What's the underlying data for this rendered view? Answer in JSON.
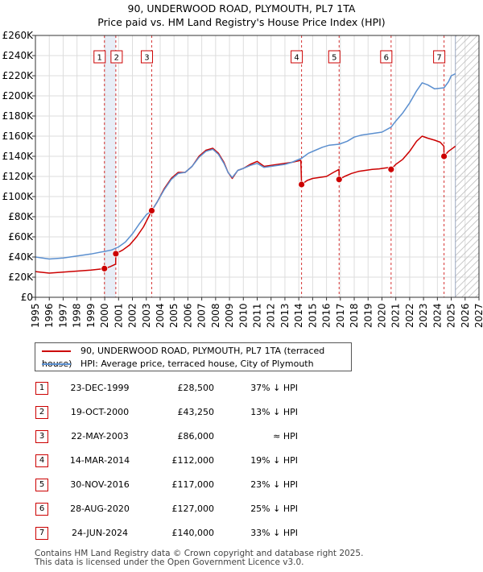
{
  "title_line1": "90, UNDERWOOD ROAD, PLYMOUTH, PL7 1TA",
  "title_line2": "Price paid vs. HM Land Registry's House Price Index (HPI)",
  "legend": {
    "red_label": "90, UNDERWOOD ROAD, PLYMOUTH, PL7 1TA (terraced house)",
    "blue_label": "HPI: Average price, terraced house, City of Plymouth"
  },
  "colors": {
    "red": "#cc0000",
    "blue": "#5b8fcf",
    "hatch": "#b8b8b8",
    "grid": "#dddddd",
    "shade": "#e8eef7"
  },
  "sales": [
    {
      "num": "1",
      "date": "23-DEC-1999",
      "price": "£28,500",
      "hpi": "37% ↓ HPI",
      "t": 1999.98,
      "v": 28500
    },
    {
      "num": "2",
      "date": "19-OCT-2000",
      "price": "£43,250",
      "hpi": "13% ↓ HPI",
      "t": 2000.8,
      "v": 43250
    },
    {
      "num": "3",
      "date": "22-MAY-2003",
      "price": "£86,000",
      "hpi": "≈ HPI",
      "t": 2003.39,
      "v": 86000
    },
    {
      "num": "4",
      "date": "14-MAR-2014",
      "price": "£112,000",
      "hpi": "19% ↓ HPI",
      "t": 2014.2,
      "v": 112000
    },
    {
      "num": "5",
      "date": "30-NOV-2016",
      "price": "£117,000",
      "hpi": "23% ↓ HPI",
      "t": 2016.91,
      "v": 117000
    },
    {
      "num": "6",
      "date": "28-AUG-2020",
      "price": "£127,000",
      "hpi": "25% ↓ HPI",
      "t": 2020.66,
      "v": 127000
    },
    {
      "num": "7",
      "date": "24-JUN-2024",
      "price": "£140,000",
      "hpi": "33% ↓ HPI",
      "t": 2024.48,
      "v": 140000
    }
  ],
  "footer_line1": "Contains HM Land Registry data © Crown copyright and database right 2025.",
  "footer_line2": "This data is licensed under the Open Government Licence v3.0.",
  "chart_data": {
    "type": "line",
    "title": "90, UNDERWOOD ROAD, PLYMOUTH, PL7 1TA — Price paid vs. HM Land Registry's House Price Index (HPI)",
    "xlabel": "",
    "ylabel": "",
    "xlim": [
      1995,
      2027
    ],
    "ylim": [
      0,
      260000
    ],
    "y_ticks": [
      0,
      20000,
      40000,
      60000,
      80000,
      100000,
      120000,
      140000,
      160000,
      180000,
      200000,
      220000,
      240000,
      260000
    ],
    "y_tick_labels": [
      "£0",
      "£20K",
      "£40K",
      "£60K",
      "£80K",
      "£100K",
      "£120K",
      "£140K",
      "£160K",
      "£180K",
      "£200K",
      "£220K",
      "£240K",
      "£260K"
    ],
    "x_ticks": [
      "1995",
      "1996",
      "1997",
      "1998",
      "1999",
      "2000",
      "2001",
      "2002",
      "2003",
      "2004",
      "2005",
      "2006",
      "2007",
      "2008",
      "2009",
      "2010",
      "2011",
      "2012",
      "2013",
      "2014",
      "2015",
      "2016",
      "2017",
      "2018",
      "2019",
      "2020",
      "2021",
      "2022",
      "2023",
      "2024",
      "2025",
      "2026",
      "2027"
    ],
    "forecast_from": 2025.3,
    "series": [
      {
        "name": "90, UNDERWOOD ROAD, PLYMOUTH, PL7 1TA (terraced house)",
        "color": "#cc0000",
        "points": [
          [
            1995,
            25500
          ],
          [
            1996,
            24000
          ],
          [
            1997,
            25000
          ],
          [
            1998,
            26000
          ],
          [
            1999,
            27000
          ],
          [
            1999.98,
            28500
          ],
          [
            2000.4,
            30500
          ],
          [
            2000.79,
            33000
          ],
          [
            2000.8,
            43250
          ],
          [
            2001.3,
            47000
          ],
          [
            2001.8,
            52000
          ],
          [
            2002.3,
            60000
          ],
          [
            2002.8,
            70000
          ],
          [
            2003.39,
            86000
          ],
          [
            2003.8,
            95000
          ],
          [
            2004.3,
            108000
          ],
          [
            2004.8,
            118000
          ],
          [
            2005.3,
            124000
          ],
          [
            2005.8,
            124000
          ],
          [
            2006.3,
            130000
          ],
          [
            2006.8,
            140000
          ],
          [
            2007.3,
            146000
          ],
          [
            2007.8,
            148000
          ],
          [
            2008.2,
            143000
          ],
          [
            2008.6,
            134000
          ],
          [
            2008.9,
            124000
          ],
          [
            2009.2,
            118000
          ],
          [
            2009.6,
            126000
          ],
          [
            2010,
            128000
          ],
          [
            2010.5,
            132000
          ],
          [
            2011,
            135000
          ],
          [
            2011.5,
            130000
          ],
          [
            2012,
            131000
          ],
          [
            2012.5,
            132000
          ],
          [
            2013,
            133000
          ],
          [
            2013.5,
            134000
          ],
          [
            2014.15,
            136000
          ],
          [
            2014.2,
            112000
          ],
          [
            2014.6,
            116000
          ],
          [
            2015,
            118000
          ],
          [
            2015.5,
            119000
          ],
          [
            2016,
            120000
          ],
          [
            2016.5,
            124000
          ],
          [
            2016.9,
            127000
          ],
          [
            2016.91,
            117000
          ],
          [
            2017.3,
            120000
          ],
          [
            2017.8,
            123000
          ],
          [
            2018.3,
            125000
          ],
          [
            2018.8,
            126000
          ],
          [
            2019.3,
            127000
          ],
          [
            2019.8,
            127500
          ],
          [
            2020.3,
            128500
          ],
          [
            2020.65,
            129000
          ],
          [
            2020.66,
            127000
          ],
          [
            2021,
            132000
          ],
          [
            2021.5,
            137000
          ],
          [
            2022,
            145000
          ],
          [
            2022.5,
            155000
          ],
          [
            2022.9,
            160000
          ],
          [
            2023.3,
            158000
          ],
          [
            2023.8,
            156000
          ],
          [
            2024.2,
            154000
          ],
          [
            2024.47,
            150000
          ],
          [
            2024.48,
            140000
          ],
          [
            2024.8,
            145000
          ],
          [
            2025,
            147000
          ],
          [
            2025.3,
            150000
          ]
        ]
      },
      {
        "name": "HPI: Average price, terraced house, City of Plymouth",
        "color": "#5b8fcf",
        "points": [
          [
            1995,
            40000
          ],
          [
            1996,
            38000
          ],
          [
            1997,
            39000
          ],
          [
            1998,
            41000
          ],
          [
            1999,
            43000
          ],
          [
            1999.98,
            45500
          ],
          [
            2000.5,
            47000
          ],
          [
            2001,
            50000
          ],
          [
            2001.5,
            55000
          ],
          [
            2002,
            63000
          ],
          [
            2002.5,
            73000
          ],
          [
            2003,
            82000
          ],
          [
            2003.39,
            86000
          ],
          [
            2003.8,
            95000
          ],
          [
            2004.3,
            107000
          ],
          [
            2004.8,
            117000
          ],
          [
            2005.3,
            123000
          ],
          [
            2005.8,
            124000
          ],
          [
            2006.3,
            130000
          ],
          [
            2006.8,
            139000
          ],
          [
            2007.3,
            145000
          ],
          [
            2007.8,
            147000
          ],
          [
            2008.2,
            142000
          ],
          [
            2008.6,
            133000
          ],
          [
            2008.9,
            124000
          ],
          [
            2009.2,
            119000
          ],
          [
            2009.6,
            126000
          ],
          [
            2010,
            128000
          ],
          [
            2010.5,
            131000
          ],
          [
            2011,
            133000
          ],
          [
            2011.5,
            129000
          ],
          [
            2012,
            130000
          ],
          [
            2012.5,
            131000
          ],
          [
            2013,
            132000
          ],
          [
            2013.5,
            134000
          ],
          [
            2014.2,
            138000
          ],
          [
            2014.7,
            143000
          ],
          [
            2015.2,
            146000
          ],
          [
            2015.7,
            149000
          ],
          [
            2016.2,
            151000
          ],
          [
            2016.91,
            152000
          ],
          [
            2017.5,
            155000
          ],
          [
            2018,
            159000
          ],
          [
            2018.5,
            161000
          ],
          [
            2019,
            162000
          ],
          [
            2019.5,
            163000
          ],
          [
            2020,
            164000
          ],
          [
            2020.66,
            169000
          ],
          [
            2021,
            175000
          ],
          [
            2021.5,
            183000
          ],
          [
            2022,
            193000
          ],
          [
            2022.5,
            205000
          ],
          [
            2022.9,
            213000
          ],
          [
            2023.3,
            211000
          ],
          [
            2023.8,
            207000
          ],
          [
            2024.48,
            208000
          ],
          [
            2024.8,
            214000
          ],
          [
            2025,
            220000
          ],
          [
            2025.3,
            222000
          ]
        ]
      }
    ]
  }
}
